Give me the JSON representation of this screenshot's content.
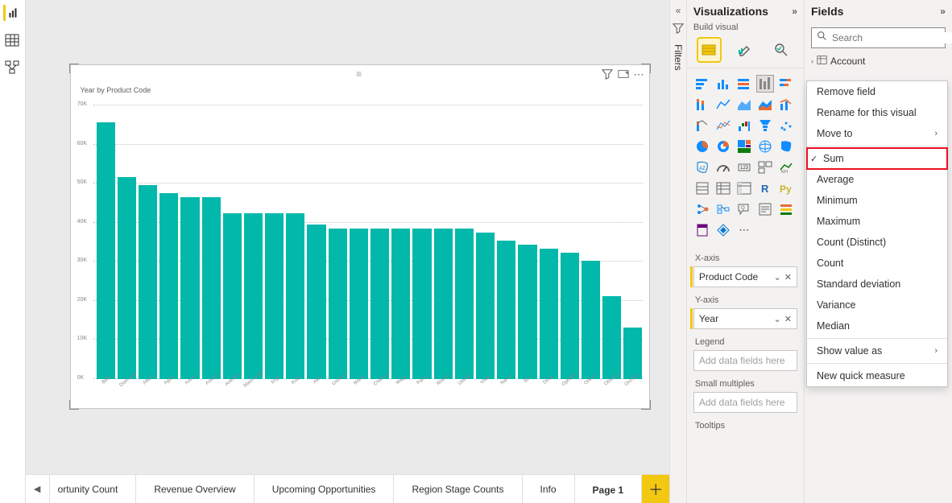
{
  "rail": {
    "items": [
      "report",
      "table",
      "model"
    ]
  },
  "chart": {
    "title": "Year by Product Code",
    "bar_color": "#01b8aa",
    "y_ticks": [
      "0K",
      "10K",
      "20K",
      "30K",
      "40K",
      "50K",
      "60K",
      "70K"
    ],
    "categories": [
      "Belle",
      "Diamond",
      "Altura",
      "Agate",
      "Azure",
      "Axiom",
      "Antrium",
      "Machrame",
      "Ergo",
      "Kutra",
      "Ates",
      "Usonia",
      "Maras",
      "Chalice",
      "Mage",
      "Paros",
      "Rhinox",
      "Utama",
      "Vista",
      "Narva",
      "Siri",
      "Dosk",
      "Ophelia",
      "Orkan",
      "Obsian",
      "Orchion"
    ],
    "values": [
      65,
      51,
      49,
      47,
      46,
      46,
      42,
      42,
      42,
      42,
      39,
      38,
      38,
      38,
      38,
      38,
      38,
      38,
      37,
      35,
      34,
      33,
      32,
      30,
      21,
      13
    ],
    "y_max": 70
  },
  "page_tabs": {
    "truncated": "ortunity Count",
    "tabs": [
      "Revenue Overview",
      "Upcoming Opportunities",
      "Region Stage Counts",
      "Info",
      "Page 1"
    ],
    "active": "Page 1"
  },
  "filters_label": "Filters",
  "viz_pane": {
    "title": "Visualizations",
    "subtitle": "Build visual",
    "wells": {
      "xaxis_label": "X-axis",
      "xaxis_value": "Product Code",
      "yaxis_label": "Y-axis",
      "yaxis_value": "Year",
      "legend_label": "Legend",
      "legend_placeholder": "Add data fields here",
      "small_label": "Small multiples",
      "small_placeholder": "Add data fields here",
      "tooltips_label": "Tooltips"
    }
  },
  "fields_pane": {
    "title": "Fields",
    "search_placeholder": "Search",
    "table_name": "Account"
  },
  "context_menu": {
    "remove": "Remove field",
    "rename": "Rename for this visual",
    "moveto": "Move to",
    "sum": "Sum",
    "average": "Average",
    "minimum": "Minimum",
    "maximum": "Maximum",
    "count_distinct": "Count (Distinct)",
    "count": "Count",
    "stddev": "Standard deviation",
    "variance": "Variance",
    "median": "Median",
    "show_as": "Show value as",
    "new_measure": "New quick measure"
  }
}
